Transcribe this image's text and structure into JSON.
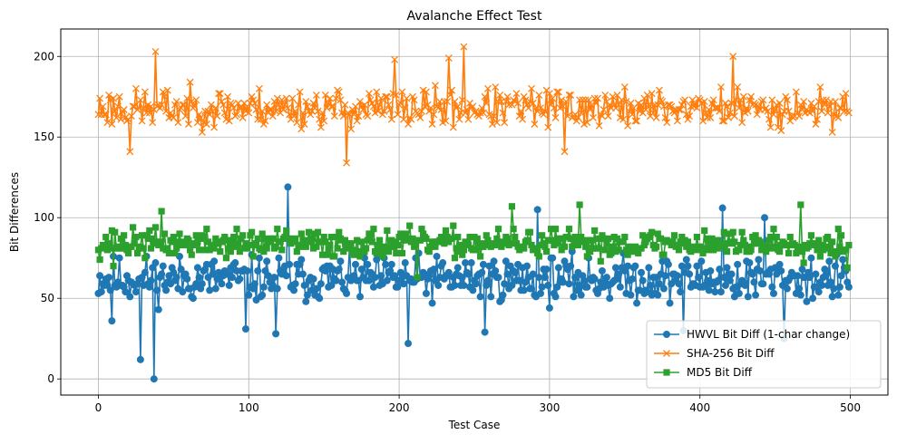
{
  "chart_data": {
    "type": "line",
    "title": "Avalanche Effect Test",
    "xlabel": "Test Case",
    "ylabel": "Bit Differences",
    "xlim": [
      -25,
      525
    ],
    "ylim": [
      -10,
      217
    ],
    "xticks": [
      0,
      100,
      200,
      300,
      400,
      500
    ],
    "yticks": [
      0,
      50,
      100,
      150,
      200
    ],
    "grid": true,
    "legend_position": "lower-right",
    "series": [
      {
        "name": "HWVL Bit Diff (1-char change)",
        "color": "#1f77b4",
        "marker": "circle",
        "generator": {
          "kind": "noise",
          "n": 500,
          "mean": 62,
          "amplitude": 13,
          "seed": 11
        },
        "points": [
          [
            28,
            12
          ],
          [
            37,
            0
          ],
          [
            126,
            119
          ],
          [
            292,
            105
          ],
          [
            415,
            106
          ],
          [
            443,
            100
          ],
          [
            206,
            22
          ],
          [
            257,
            29
          ],
          [
            118,
            28
          ],
          [
            98,
            31
          ],
          [
            389,
            30
          ],
          [
            456,
            25
          ],
          [
            9,
            36
          ]
        ]
      },
      {
        "name": "SHA-256 Bit Diff",
        "color": "#ff7f0e",
        "marker": "x",
        "generator": {
          "kind": "noise",
          "n": 500,
          "mean": 168,
          "amplitude": 11,
          "seed": 23
        },
        "points": [
          [
            38,
            203
          ],
          [
            243,
            206
          ],
          [
            165,
            134
          ],
          [
            21,
            141
          ],
          [
            310,
            141
          ],
          [
            197,
            198
          ],
          [
            233,
            199
          ],
          [
            422,
            200
          ]
        ]
      },
      {
        "name": "MD5 Bit Diff",
        "color": "#2ca02c",
        "marker": "square",
        "generator": {
          "kind": "noise",
          "n": 500,
          "mean": 84,
          "amplitude": 8,
          "seed": 37
        },
        "points": [
          [
            42,
            104
          ],
          [
            320,
            108
          ],
          [
            467,
            108
          ],
          [
            275,
            107
          ],
          [
            10,
            70
          ],
          [
            498,
            69
          ],
          [
            212,
            63
          ]
        ]
      }
    ]
  }
}
